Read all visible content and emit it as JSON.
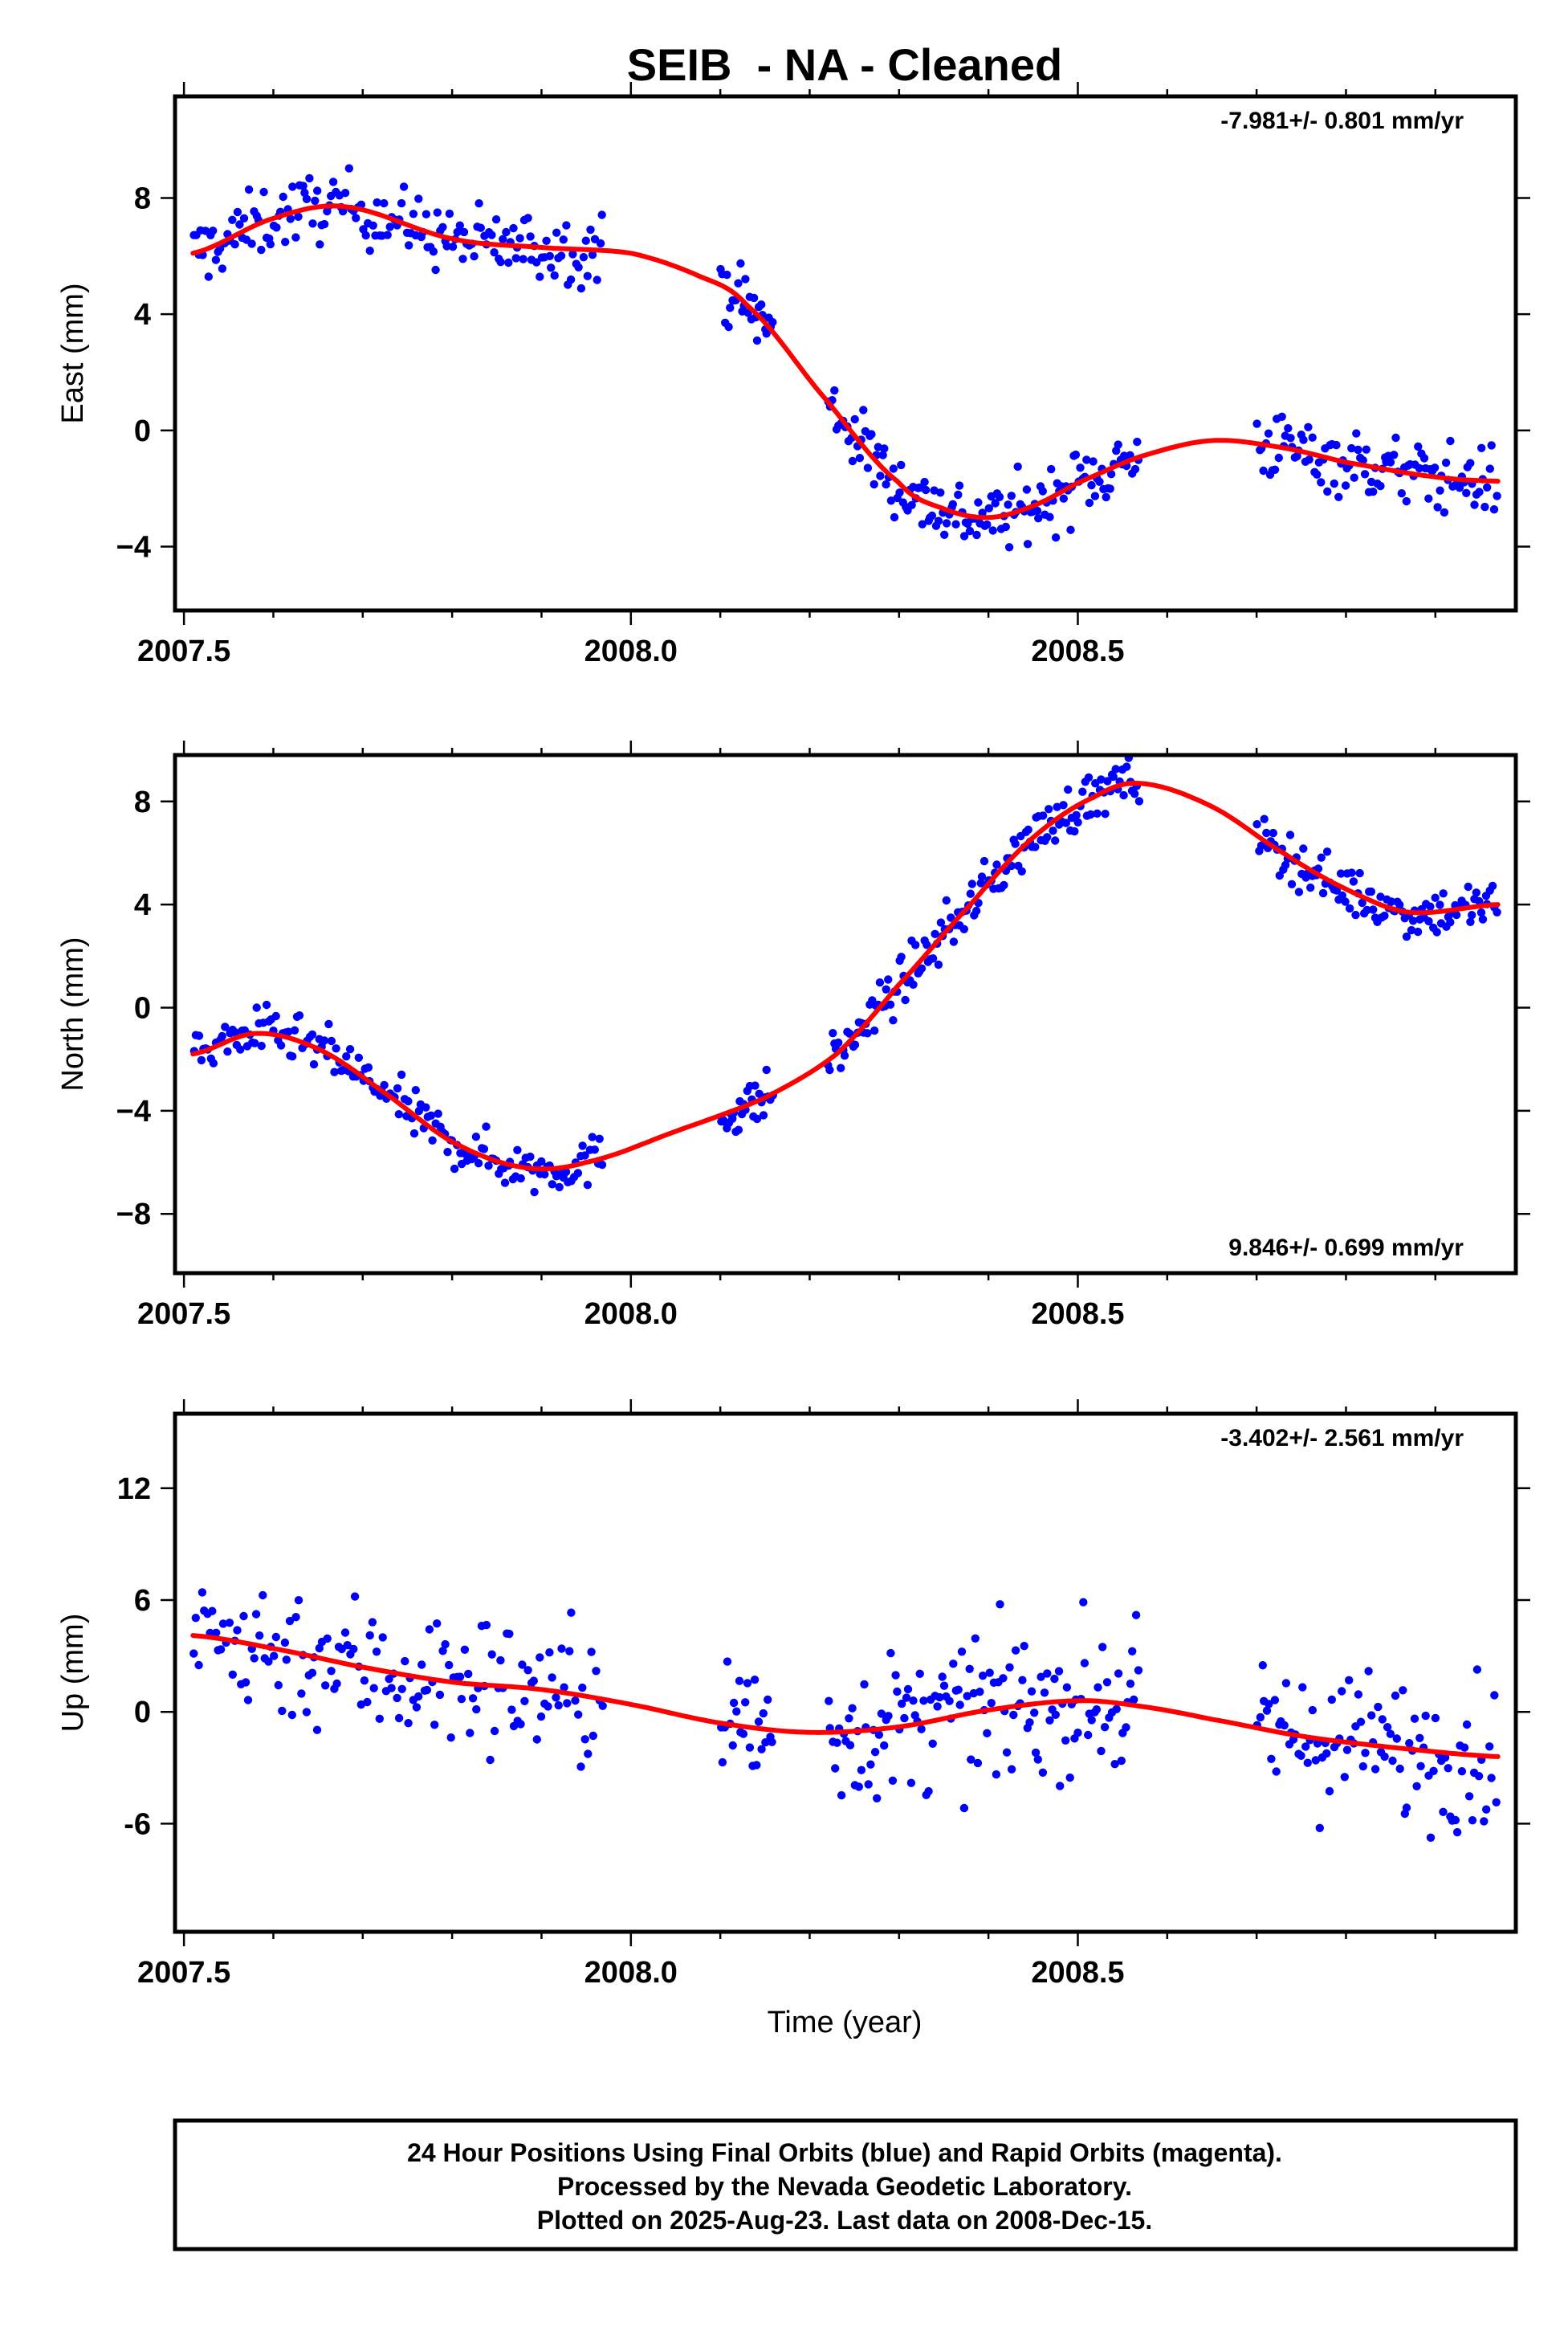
{
  "title": "SEIB  - NA - Cleaned",
  "footer": {
    "line1": "24 Hour Positions Using Final Orbits (blue) and Rapid Orbits (magenta).",
    "line2": "Processed by the Nevada Geodetic Laboratory.",
    "line3": "Plotted on 2025-Aug-23. Last data on 2008-Dec-15."
  },
  "colors": {
    "data": "#0000ff",
    "fit": "#ff0000",
    "frame": "#000000"
  },
  "chart_data": [
    {
      "type": "scatter",
      "panel": "east",
      "ylabel": "East (mm)",
      "xlabel": "",
      "xlim": [
        2007.49,
        2008.99
      ],
      "ylim": [
        -6.2,
        11.5
      ],
      "xticks": [
        "2007.5",
        "2008.0",
        "2008.5"
      ],
      "yticks": [
        "8",
        "4",
        "0",
        "−4"
      ],
      "ytick_values": [
        8,
        4,
        0,
        -4
      ],
      "rate": "-7.981+/- 0.801 mm/yr",
      "rate_position": "top-right",
      "fit_knots": [
        [
          2007.51,
          6.1
        ],
        [
          2007.6,
          7.3
        ],
        [
          2007.68,
          7.7
        ],
        [
          2007.8,
          6.6
        ],
        [
          2007.9,
          6.3
        ],
        [
          2008.0,
          6.1
        ],
        [
          2008.07,
          5.4
        ],
        [
          2008.13,
          4.3
        ],
        [
          2008.22,
          1.0
        ],
        [
          2008.3,
          -1.8
        ],
        [
          2008.35,
          -2.7
        ],
        [
          2008.4,
          -3.0
        ],
        [
          2008.45,
          -2.6
        ],
        [
          2008.5,
          -1.8
        ],
        [
          2008.57,
          -0.9
        ],
        [
          2008.65,
          -0.35
        ],
        [
          2008.73,
          -0.6
        ],
        [
          2008.8,
          -1.1
        ],
        [
          2008.9,
          -1.6
        ],
        [
          2008.97,
          -1.75
        ]
      ],
      "segments": [
        {
          "x0": 2007.51,
          "x1": 2007.97,
          "center": "fit",
          "spread": 1.1,
          "count": 170
        },
        {
          "x0": 2008.1,
          "x1": 2008.16,
          "center": "fit",
          "spread": 1.1,
          "count": 28
        },
        {
          "x0": 2008.22,
          "x1": 2008.57,
          "center": "fit",
          "spread": 1.1,
          "count": 150
        },
        {
          "x0": 2008.7,
          "x1": 2008.97,
          "center": "fit",
          "spread": 1.1,
          "count": 110
        }
      ]
    },
    {
      "type": "scatter",
      "panel": "north",
      "ylabel": "North (mm)",
      "xlabel": "",
      "xlim": [
        2007.49,
        2008.99
      ],
      "ylim": [
        -10.3,
        9.8
      ],
      "xticks": [
        "2007.5",
        "2008.0",
        "2008.5"
      ],
      "yticks": [
        "8",
        "4",
        "0",
        "−4",
        "−8"
      ],
      "ytick_values": [
        8,
        4,
        0,
        -4,
        -8
      ],
      "rate": "9.846+/- 0.699 mm/yr",
      "rate_position": "bottom-right",
      "fit_knots": [
        [
          2007.51,
          -1.8
        ],
        [
          2007.58,
          -1.0
        ],
        [
          2007.65,
          -1.6
        ],
        [
          2007.72,
          -3.2
        ],
        [
          2007.8,
          -5.2
        ],
        [
          2007.88,
          -6.2
        ],
        [
          2007.95,
          -6.0
        ],
        [
          2008.05,
          -4.8
        ],
        [
          2008.15,
          -3.5
        ],
        [
          2008.23,
          -1.8
        ],
        [
          2008.3,
          0.9
        ],
        [
          2008.38,
          4.0
        ],
        [
          2008.45,
          6.6
        ],
        [
          2008.52,
          8.2
        ],
        [
          2008.57,
          8.7
        ],
        [
          2008.65,
          7.8
        ],
        [
          2008.73,
          6.0
        ],
        [
          2008.8,
          4.6
        ],
        [
          2008.87,
          3.7
        ],
        [
          2008.97,
          4.0
        ]
      ],
      "segments": [
        {
          "x0": 2007.51,
          "x1": 2007.97,
          "center": "fit",
          "spread": 0.9,
          "count": 170
        },
        {
          "x0": 2008.1,
          "x1": 2008.16,
          "center": "fit",
          "spread": 0.9,
          "count": 28
        },
        {
          "x0": 2008.22,
          "x1": 2008.57,
          "center": "fit",
          "spread": 0.9,
          "count": 150
        },
        {
          "x0": 2008.7,
          "x1": 2008.97,
          "center": "fit",
          "spread": 0.9,
          "count": 110
        }
      ]
    },
    {
      "type": "scatter",
      "panel": "up",
      "ylabel": "Up (mm)",
      "xlabel": "Time (year)",
      "xlim": [
        2007.49,
        2008.99
      ],
      "ylim": [
        -11.8,
        16.0
      ],
      "xticks": [
        "2007.5",
        "2008.0",
        "2008.5"
      ],
      "yticks": [
        "12",
        "6",
        "0",
        "-6"
      ],
      "ytick_values": [
        12,
        6,
        0,
        -6
      ],
      "rate": "-3.402+/- 2.561 mm/yr",
      "rate_position": "top-right",
      "fit_knots": [
        [
          2007.51,
          4.1
        ],
        [
          2007.6,
          3.4
        ],
        [
          2007.7,
          2.4
        ],
        [
          2007.8,
          1.6
        ],
        [
          2007.9,
          1.2
        ],
        [
          2008.0,
          0.4
        ],
        [
          2008.1,
          -0.6
        ],
        [
          2008.2,
          -1.1
        ],
        [
          2008.3,
          -0.8
        ],
        [
          2008.4,
          0.1
        ],
        [
          2008.5,
          0.6
        ],
        [
          2008.57,
          0.3
        ],
        [
          2008.65,
          -0.4
        ],
        [
          2008.75,
          -1.3
        ],
        [
          2008.85,
          -1.9
        ],
        [
          2008.97,
          -2.4
        ]
      ],
      "segments": [
        {
          "x0": 2007.51,
          "x1": 2007.97,
          "center": "fit",
          "spread": 3.6,
          "count": 150
        },
        {
          "x0": 2008.1,
          "x1": 2008.16,
          "center": "fit",
          "spread": 3.6,
          "count": 24
        },
        {
          "x0": 2008.22,
          "x1": 2008.57,
          "center": "fit",
          "spread": 3.6,
          "count": 140
        },
        {
          "x0": 2008.7,
          "x1": 2008.97,
          "center": "fit",
          "spread": 3.6,
          "count": 100
        }
      ]
    }
  ]
}
